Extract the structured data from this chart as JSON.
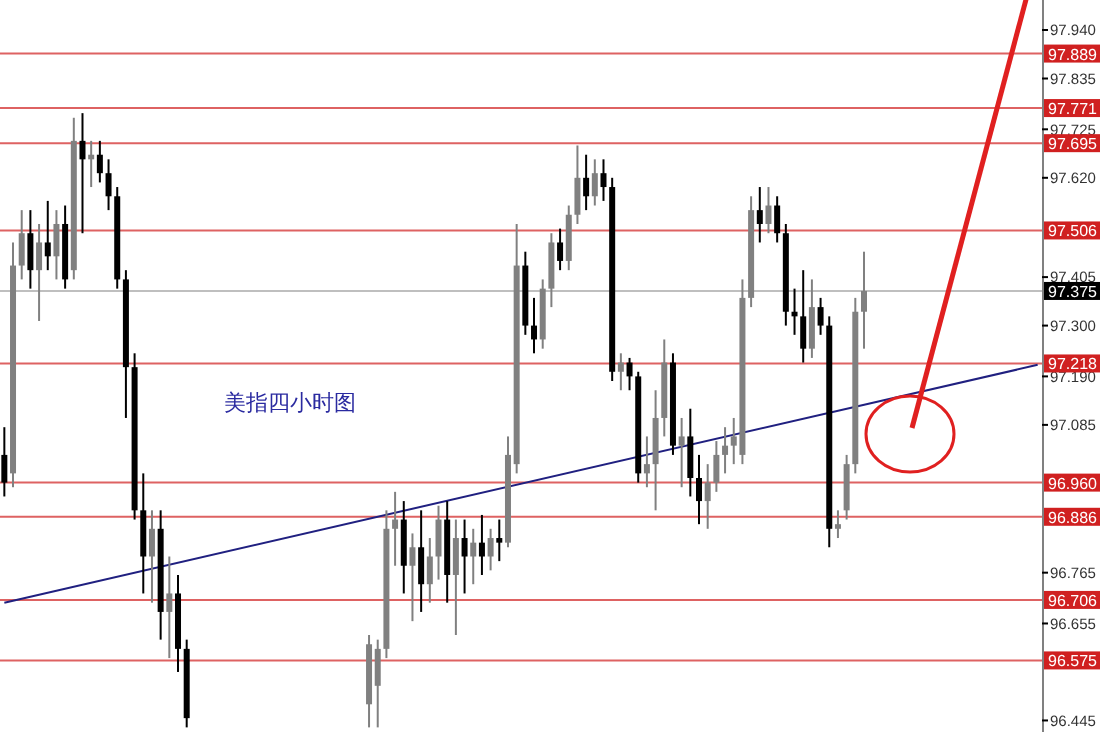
{
  "chart_data": {
    "type": "candlestick",
    "title": "美指四小时图",
    "categories": [
      null,
      null,
      null,
      null,
      null,
      null,
      null,
      null,
      null,
      null,
      null,
      null,
      null,
      null,
      null,
      null,
      null,
      null,
      null,
      null,
      null,
      null,
      null,
      null,
      null,
      null,
      null,
      null,
      null,
      null,
      null,
      null,
      null,
      null,
      null,
      null,
      null,
      null,
      null,
      null,
      null,
      null,
      null,
      null,
      null,
      null,
      null,
      null,
      null,
      null,
      null,
      null,
      null,
      null,
      null,
      null,
      null,
      null,
      null,
      null,
      null,
      null,
      null,
      null,
      null,
      null,
      null,
      null,
      null,
      null,
      null,
      null,
      null,
      null,
      null,
      null,
      null,
      null,
      null,
      null,
      null,
      null,
      null,
      null,
      null,
      null,
      null,
      null,
      null,
      null,
      null,
      null,
      null,
      null,
      null,
      null,
      null,
      null,
      null,
      null,
      null,
      null,
      null,
      null,
      null,
      null,
      null,
      null,
      null,
      null,
      null,
      null,
      null,
      null,
      null,
      null,
      null,
      null,
      null,
      null
    ],
    "ohlc": [
      [
        97.02,
        97.08,
        96.93,
        96.96
      ],
      [
        96.98,
        97.48,
        96.95,
        97.43
      ],
      [
        97.43,
        97.55,
        97.4,
        97.5
      ],
      [
        97.5,
        97.55,
        97.38,
        97.42
      ],
      [
        97.42,
        97.52,
        97.31,
        97.48
      ],
      [
        97.48,
        97.57,
        97.42,
        97.45
      ],
      [
        97.45,
        97.55,
        97.4,
        97.52
      ],
      [
        97.52,
        97.56,
        97.38,
        97.4
      ],
      [
        97.42,
        97.75,
        97.4,
        97.7
      ],
      [
        97.7,
        97.76,
        97.5,
        97.66
      ],
      [
        97.66,
        97.7,
        97.6,
        97.67
      ],
      [
        97.67,
        97.7,
        97.61,
        97.63
      ],
      [
        97.63,
        97.66,
        97.55,
        97.58
      ],
      [
        97.58,
        97.6,
        97.38,
        97.4
      ],
      [
        97.4,
        97.42,
        97.1,
        97.21
      ],
      [
        97.21,
        97.24,
        96.88,
        96.9
      ],
      [
        96.9,
        96.98,
        96.72,
        96.8
      ],
      [
        96.8,
        96.9,
        96.7,
        96.86
      ],
      [
        96.86,
        96.9,
        96.62,
        96.68
      ],
      [
        96.68,
        96.8,
        96.58,
        96.72
      ],
      [
        96.72,
        96.76,
        96.55,
        96.6
      ],
      [
        96.6,
        96.62,
        96.43,
        96.45
      ],
      null,
      null,
      null,
      null,
      null,
      null,
      null,
      null,
      null,
      null,
      null,
      null,
      null,
      null,
      null,
      null,
      null,
      null,
      null,
      null,
      [
        96.48,
        96.63,
        96.43,
        96.61
      ],
      [
        96.52,
        96.62,
        96.43,
        96.6
      ],
      [
        96.6,
        96.9,
        96.58,
        96.86
      ],
      [
        96.86,
        96.94,
        96.78,
        96.88
      ],
      [
        96.88,
        96.92,
        96.72,
        96.78
      ],
      [
        96.78,
        96.85,
        96.66,
        96.82
      ],
      [
        96.82,
        96.9,
        96.68,
        96.74
      ],
      [
        96.74,
        96.84,
        96.7,
        96.8
      ],
      [
        96.8,
        96.91,
        96.75,
        96.88
      ],
      [
        96.88,
        96.92,
        96.7,
        96.76
      ],
      [
        96.76,
        96.88,
        96.63,
        96.84
      ],
      [
        96.84,
        96.88,
        96.72,
        96.8
      ],
      [
        96.8,
        96.86,
        96.74,
        96.83
      ],
      [
        96.83,
        96.89,
        96.76,
        96.8
      ],
      [
        96.8,
        96.86,
        96.77,
        96.84
      ],
      [
        96.84,
        96.88,
        96.79,
        96.83
      ],
      [
        96.83,
        97.06,
        96.82,
        97.02
      ],
      [
        97.0,
        97.52,
        96.98,
        97.43
      ],
      [
        97.43,
        97.46,
        97.28,
        97.3
      ],
      [
        97.3,
        97.36,
        97.24,
        97.27
      ],
      [
        97.27,
        97.4,
        97.25,
        97.38
      ],
      [
        97.38,
        97.5,
        97.34,
        97.48
      ],
      [
        97.48,
        97.51,
        97.42,
        97.44
      ],
      [
        97.44,
        97.56,
        97.42,
        97.54
      ],
      [
        97.54,
        97.69,
        97.52,
        97.62
      ],
      [
        97.62,
        97.67,
        97.55,
        97.58
      ],
      [
        97.58,
        97.66,
        97.56,
        97.63
      ],
      [
        97.63,
        97.66,
        97.57,
        97.6
      ],
      [
        97.6,
        97.62,
        97.18,
        97.2
      ],
      [
        97.2,
        97.24,
        97.16,
        97.22
      ],
      [
        97.22,
        97.23,
        97.16,
        97.19
      ],
      [
        97.19,
        97.2,
        96.96,
        96.98
      ],
      [
        96.98,
        97.06,
        96.95,
        97.0
      ],
      [
        97.0,
        97.16,
        96.9,
        97.1
      ],
      [
        97.1,
        97.27,
        97.06,
        97.22
      ],
      [
        97.22,
        97.24,
        97.02,
        97.04
      ],
      [
        97.04,
        97.1,
        96.95,
        97.06
      ],
      [
        97.06,
        97.12,
        96.93,
        96.97
      ],
      [
        96.97,
        97.02,
        96.87,
        96.92
      ],
      [
        96.92,
        97.0,
        96.86,
        96.96
      ],
      [
        96.96,
        97.05,
        96.94,
        97.02
      ],
      [
        97.02,
        97.08,
        96.98,
        97.04
      ],
      [
        97.04,
        97.1,
        97.0,
        97.06
      ],
      [
        97.02,
        97.4,
        97.0,
        97.36
      ],
      [
        97.36,
        97.58,
        97.34,
        97.55
      ],
      [
        97.55,
        97.6,
        97.48,
        97.52
      ],
      [
        97.52,
        97.6,
        97.5,
        97.56
      ],
      [
        97.56,
        97.58,
        97.48,
        97.5
      ],
      [
        97.5,
        97.52,
        97.3,
        97.33
      ],
      [
        97.33,
        97.38,
        97.28,
        97.32
      ],
      [
        97.32,
        97.42,
        97.22,
        97.25
      ],
      [
        97.25,
        97.4,
        97.23,
        97.34
      ],
      [
        97.34,
        97.36,
        97.28,
        97.3
      ],
      [
        97.3,
        97.32,
        96.82,
        96.86
      ],
      [
        96.86,
        96.9,
        96.84,
        96.87
      ],
      [
        96.9,
        97.02,
        96.88,
        97.0
      ],
      [
        97.0,
        97.36,
        96.98,
        97.33
      ],
      [
        97.33,
        97.46,
        97.25,
        97.375
      ],
      null,
      null,
      null,
      null,
      null,
      null,
      null,
      null,
      null,
      null,
      null,
      null,
      null,
      null,
      null,
      null,
      null,
      null,
      null,
      null
    ],
    "series": [
      {
        "type": "line",
        "values": [
          96.7,
          null,
          null,
          null,
          null,
          null,
          null,
          null,
          null,
          null,
          null,
          null,
          null,
          null,
          null,
          null,
          null,
          null,
          null,
          null,
          null,
          null,
          null,
          null,
          null,
          null,
          null,
          null,
          null,
          null,
          null,
          null,
          null,
          null,
          null,
          null,
          null,
          null,
          null,
          null,
          null,
          null,
          null,
          null,
          null,
          null,
          null,
          null,
          null,
          null,
          null,
          null,
          null,
          null,
          null,
          null,
          null,
          null,
          null,
          null,
          null,
          null,
          null,
          null,
          null,
          null,
          null,
          null,
          null,
          null,
          null,
          null,
          null,
          null,
          null,
          null,
          null,
          null,
          null,
          null,
          null,
          null,
          null,
          null,
          null,
          null,
          null,
          null,
          null,
          null,
          null,
          null,
          null,
          null,
          null,
          null,
          null,
          null,
          null,
          null,
          null,
          null,
          null,
          null,
          null,
          null,
          null,
          null,
          null,
          null,
          null,
          null,
          null,
          null,
          null,
          null,
          null,
          null,
          null,
          97.215
        ],
        "color": "#202080"
      }
    ],
    "ylim": [
      96.42,
      98.005
    ],
    "yticks": [
      {
        "value": 97.94,
        "label": "97.940"
      },
      97.835,
      97.725,
      {
        "value": 97.62,
        "label": "97.620"
      },
      97.405,
      {
        "value": 97.3,
        "label": "97.300"
      },
      {
        "value": 97.19,
        "label": "97.190"
      },
      97.085,
      96.765,
      96.655,
      96.445
    ],
    "ref_lines": [
      {
        "axis": "y",
        "value": 97.889,
        "label": "97.889",
        "color": "#d02020"
      },
      {
        "axis": "y",
        "value": 97.771,
        "label": "97.771",
        "color": "#d02020"
      },
      {
        "axis": "y",
        "value": 97.695,
        "label": "97.695",
        "color": "#d02020"
      },
      {
        "axis": "y",
        "value": 97.506,
        "label": "97.506",
        "color": "#d02020"
      },
      {
        "axis": "y",
        "value": 97.375,
        "label": "97.375",
        "color": "#000000"
      },
      {
        "axis": "y",
        "value": 97.218,
        "label": "97.218",
        "color": "#d02020"
      },
      {
        "axis": "y",
        "value": 96.96,
        "label": "96.960",
        "color": "#d02020"
      },
      {
        "axis": "y",
        "value": 96.886,
        "label": "96.886",
        "color": "#d02020"
      },
      {
        "axis": "y",
        "value": 96.706,
        "label": "96.706",
        "color": "#d02020"
      },
      {
        "axis": "y",
        "value": 96.575,
        "label": "96.575",
        "color": "#d02020"
      }
    ],
    "grid": false
  }
}
